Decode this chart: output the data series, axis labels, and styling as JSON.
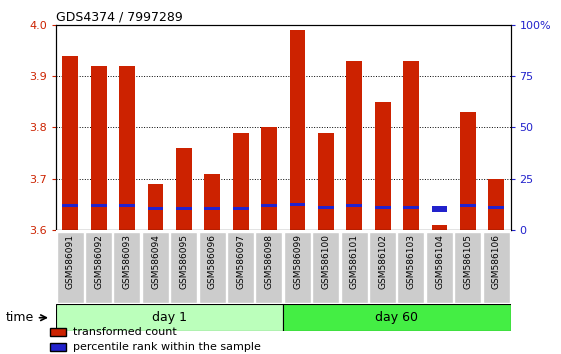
{
  "title": "GDS4374 / 7997289",
  "samples": [
    "GSM586091",
    "GSM586092",
    "GSM586093",
    "GSM586094",
    "GSM586095",
    "GSM586096",
    "GSM586097",
    "GSM586098",
    "GSM586099",
    "GSM586100",
    "GSM586101",
    "GSM586102",
    "GSM586103",
    "GSM586104",
    "GSM586105",
    "GSM586106"
  ],
  "red_values": [
    3.94,
    3.92,
    3.92,
    3.69,
    3.76,
    3.71,
    3.79,
    3.8,
    3.99,
    3.79,
    3.93,
    3.85,
    3.93,
    3.61,
    3.83,
    3.7
  ],
  "blue_values": [
    3.645,
    3.645,
    3.645,
    3.64,
    3.64,
    3.64,
    3.64,
    3.645,
    3.646,
    3.642,
    3.645,
    3.642,
    3.642,
    3.636,
    3.645,
    3.642
  ],
  "blue_heights": [
    0.006,
    0.006,
    0.006,
    0.005,
    0.005,
    0.005,
    0.005,
    0.006,
    0.006,
    0.005,
    0.006,
    0.005,
    0.005,
    0.01,
    0.005,
    0.005
  ],
  "day1_count": 8,
  "day60_count": 8,
  "ylim_left": [
    3.6,
    4.0
  ],
  "ylim_right": [
    0,
    100
  ],
  "yticks_left": [
    3.6,
    3.7,
    3.8,
    3.9,
    4.0
  ],
  "yticks_right": [
    0,
    25,
    50,
    75,
    100
  ],
  "ytick_right_labels": [
    "0",
    "25",
    "50",
    "75",
    "100%"
  ],
  "red_color": "#CC2200",
  "blue_color": "#2222CC",
  "bar_width": 0.55,
  "day1_color": "#BBFFBB",
  "day60_color": "#44EE44",
  "day1_label": "day 1",
  "day60_label": "day 60",
  "xtick_bg_color": "#CCCCCC",
  "legend_red": "transformed count",
  "legend_blue": "percentile rank within the sample",
  "time_label": "time"
}
